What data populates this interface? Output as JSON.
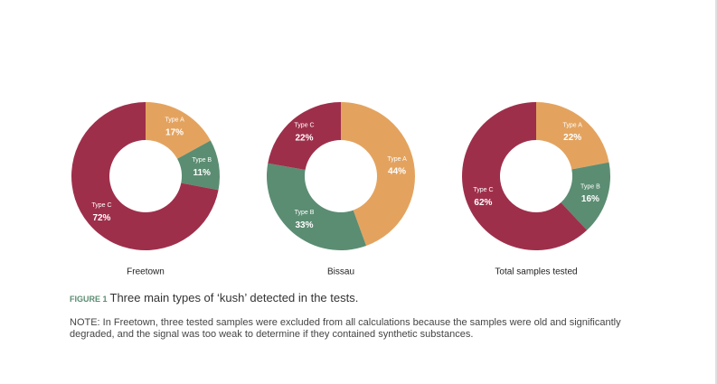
{
  "chart_data": [
    {
      "type": "pie",
      "title": "Freetown",
      "categories": [
        "Type A",
        "Type B",
        "Type C"
      ],
      "values": [
        17,
        11,
        72
      ],
      "value_labels": [
        "17%",
        "11%",
        "72%"
      ],
      "colors": [
        "#e3a35f",
        "#5b8d72",
        "#9e2f4a"
      ]
    },
    {
      "type": "pie",
      "title": "Bissau",
      "categories": [
        "Type A",
        "Type B",
        "Type C"
      ],
      "values": [
        44,
        33,
        22
      ],
      "value_labels": [
        "44%",
        "33%",
        "22%"
      ],
      "colors": [
        "#e3a35f",
        "#5b8d72",
        "#9e2f4a"
      ]
    },
    {
      "type": "pie",
      "title": "Total samples tested",
      "categories": [
        "Type A",
        "Type B",
        "Type C"
      ],
      "values": [
        22,
        16,
        62
      ],
      "value_labels": [
        "22%",
        "16%",
        "62%"
      ],
      "colors": [
        "#e3a35f",
        "#5b8d72",
        "#9e2f4a"
      ]
    }
  ],
  "figure": {
    "label": "FIGURE 1",
    "caption": "Three main types of ‘kush’ detected in the tests."
  },
  "note": "NOTE: In Freetown, three tested samples were excluded from all calculations because the samples were old and significantly degraded, and the signal was too weak to determine if they contained synthetic substances."
}
